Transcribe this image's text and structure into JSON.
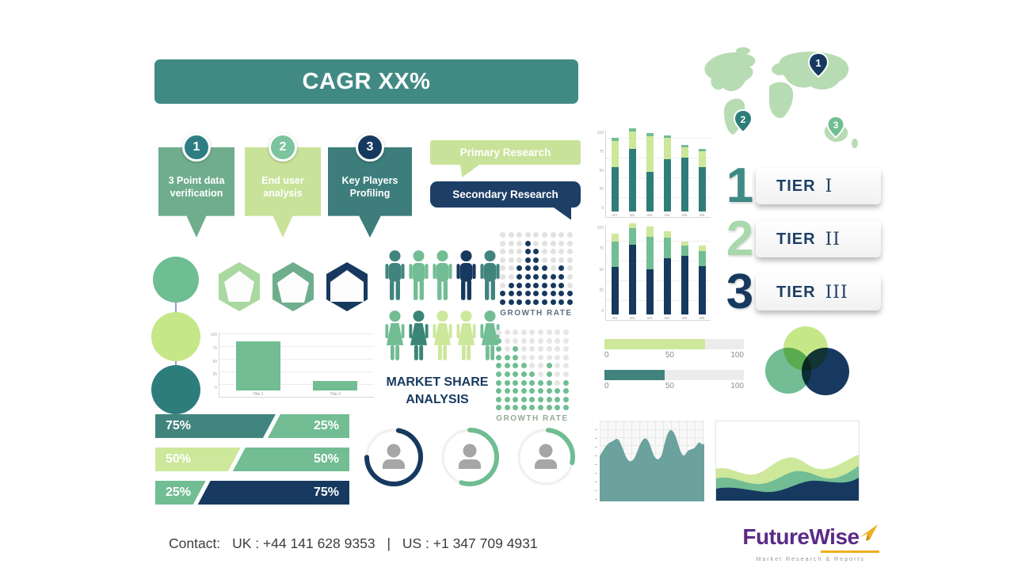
{
  "banner": {
    "label": "CAGR XX%"
  },
  "ribbons": [
    {
      "number": "1",
      "label": "3 Point data verification"
    },
    {
      "number": "2",
      "label": "End user analysis"
    },
    {
      "number": "3",
      "label": "Key Players Profiling"
    }
  ],
  "research": {
    "primary_label": "Primary Research",
    "secondary_label": "Secondary Research"
  },
  "map": {
    "pins": [
      "1",
      "2",
      "3"
    ]
  },
  "tiers": [
    {
      "number": "1",
      "label": "TIER",
      "numeral": "I"
    },
    {
      "number": "2",
      "label": "TIER",
      "numeral": "II"
    },
    {
      "number": "3",
      "label": "TIER",
      "numeral": "III"
    }
  ],
  "market_share": {
    "line1": "MARKET SHARE",
    "line2": "ANALYSIS"
  },
  "people": {
    "row1": [
      "teal",
      "green",
      "green",
      "navy",
      "teal"
    ],
    "row2": [
      "green",
      "teal-dark",
      "light",
      "light",
      "green"
    ]
  },
  "contact": {
    "label": "Contact:",
    "uk": "UK : +44 141 628 9353",
    "sep": "|",
    "us": "US :  +1 347 709 4931"
  },
  "logo": {
    "name": "FutureWise",
    "tagline": "Market Research & Reports"
  },
  "colors": {
    "teal": "#41847E",
    "teal_dark": "#2F7D79",
    "medium_green": "#72BD94",
    "light_green": "#CDE79B",
    "navy": "#17395F",
    "map_green": "#B7DCB3",
    "logo_purple": "#5B2A86",
    "logo_gold": "#EFAF1F"
  },
  "chart_data": [
    {
      "id": "weekly-stacked-top",
      "type": "bar",
      "stacked": true,
      "categories": [
        "W1",
        "W2",
        "W3",
        "W4",
        "W5",
        "W6"
      ],
      "series": [
        {
          "name": "dark-segment",
          "color": "#2F7D79",
          "values": [
            55,
            78,
            50,
            65,
            67,
            55
          ]
        },
        {
          "name": "light-segment",
          "color": "#CDE79B",
          "values": [
            33,
            22,
            44,
            27,
            13,
            20
          ]
        },
        {
          "name": "cap-segment",
          "color": "#72BD94",
          "values": [
            4,
            4,
            4,
            3,
            3,
            3
          ]
        }
      ],
      "ylim": [
        0,
        100
      ],
      "yticks": [
        0,
        25,
        50,
        75,
        100
      ]
    },
    {
      "id": "weekly-stacked-bottom",
      "type": "bar",
      "stacked": true,
      "categories": [
        "W1",
        "W2",
        "W3",
        "W4",
        "W5",
        "W6"
      ],
      "series": [
        {
          "name": "navy-segment",
          "color": "#17395F",
          "values": [
            54,
            79,
            51,
            64,
            67,
            55
          ]
        },
        {
          "name": "green-segment",
          "color": "#72BD94",
          "values": [
            29,
            19,
            37,
            23,
            11,
            17
          ]
        },
        {
          "name": "light-segment",
          "color": "#CDE79B",
          "values": [
            9,
            6,
            12,
            8,
            5,
            6
          ]
        }
      ],
      "ylim": [
        0,
        100
      ],
      "yticks": [
        0,
        25,
        50,
        75,
        100
      ]
    },
    {
      "id": "two-bar-comparison",
      "type": "bar",
      "categories": [
        "Title 1",
        "Title 2"
      ],
      "values": [
        85,
        17
      ],
      "color": "#72BD94",
      "ylim": [
        0,
        100
      ],
      "yticks": [
        0,
        25,
        50,
        75,
        100
      ]
    },
    {
      "id": "growth-rate-navy",
      "type": "dot-matrix",
      "title": "GROWTH RATE",
      "rows": 9,
      "cols": 9,
      "color": "#17395F",
      "bg_color": "#E2E2E2",
      "heights": [
        2,
        3,
        5,
        8,
        7,
        5,
        4,
        5,
        2
      ]
    },
    {
      "id": "growth-rate-green",
      "type": "dot-matrix",
      "title": "GROWTH RATE",
      "rows": 10,
      "cols": 9,
      "color": "#6FBD92",
      "bg_color": "#E6E6E6",
      "heights": [
        9,
        7,
        8,
        6,
        5,
        4,
        6,
        3,
        4
      ]
    },
    {
      "id": "share-split-bars",
      "type": "bar",
      "variant": "split",
      "rows": [
        {
          "left": {
            "label": "75%",
            "value": 75,
            "color": "#41847E"
          },
          "right": {
            "label": "25%",
            "value": 25,
            "color": "#72BD94"
          }
        },
        {
          "left": {
            "label": "50%",
            "value": 50,
            "color": "#CDE79B"
          },
          "right": {
            "label": "50%",
            "value": 50,
            "color": "#72BD94"
          }
        },
        {
          "left": {
            "label": "25%",
            "value": 25,
            "color": "#72BD94"
          },
          "right": {
            "label": "75%",
            "value": 75,
            "color": "#17395F"
          }
        }
      ]
    },
    {
      "id": "person-gauges",
      "type": "pie",
      "variant": "donut",
      "values": [
        72,
        55,
        27
      ],
      "colors": [
        "#17395F",
        "#6FBD92",
        "#6FBD92"
      ]
    },
    {
      "id": "score-progress",
      "type": "bar",
      "variant": "progress",
      "bars": [
        {
          "value": 72,
          "color": "#CDE79B"
        },
        {
          "value": 43,
          "color": "#41847E"
        }
      ],
      "ticks": [
        "0",
        "50",
        "100"
      ]
    }
  ]
}
